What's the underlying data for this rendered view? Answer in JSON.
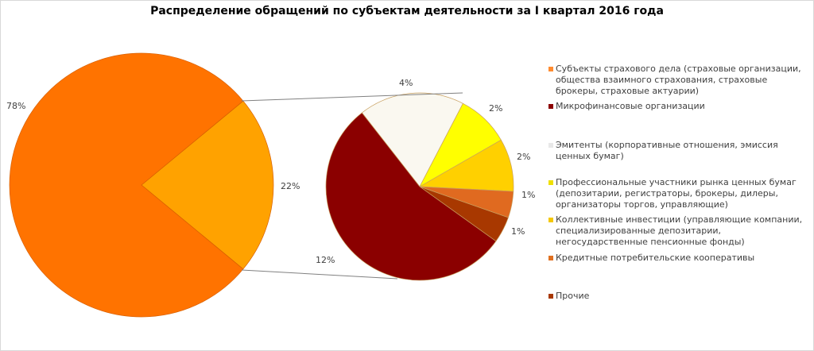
{
  "chart_data": {
    "type": "pie",
    "subtype": "pie-of-pie",
    "title": "Распределение обращений по субъектам деятельности за I квартал 2016 года",
    "primary": {
      "slices": [
        {
          "name": "Субъекты страхового дела",
          "value": 78,
          "label": "78%",
          "color": "#ff7300"
        },
        {
          "name": "Прочие (выделено)",
          "value": 22,
          "label": "22%",
          "color": "#ffa200"
        }
      ]
    },
    "secondary": {
      "slices": [
        {
          "name": "Микрофинансовые организации",
          "value": 12,
          "label": "12%",
          "color": "#8b0000"
        },
        {
          "name": "Эмитенты",
          "value": 4,
          "label": "4%",
          "color": "#faf8f0"
        },
        {
          "name": "Профессиональные участники рынка ценных бумаг",
          "value": 2,
          "label": "2%",
          "color": "#ffff00"
        },
        {
          "name": "Коллективные инвестиции",
          "value": 2,
          "label": "2%",
          "color": "#ffd000"
        },
        {
          "name": "Кредитные потребительские кооперативы",
          "value": 1,
          "label": "1%",
          "color": "#e06a20"
        },
        {
          "name": "Прочие",
          "value": 1,
          "label": "1%",
          "color": "#a83800"
        }
      ]
    },
    "legend_position": "right"
  },
  "legend": [
    {
      "label": "Субъекты страхового дела (страховые организации, общества взаимного страхования, страховые брокеры, страховые актуарии)",
      "color": "#ff8c30"
    },
    {
      "label": "Микрофинансовые организации",
      "color": "#8b0000"
    },
    {
      "label": "Эмитенты (корпоративные отношения, эмиссия ценных бумаг)",
      "color": "#e8e8e8"
    },
    {
      "label": "Профессиональные участники рынка ценных бумаг (депозитарии, регистраторы, брокеры, дилеры, организаторы торгов, управляющие)",
      "color": "#f0e000"
    },
    {
      "label": "Коллективные инвестиции (управляющие компании, специализированные депозитарии, негосударственные пенсионные фонды)",
      "color": "#f5c800"
    },
    {
      "label": "Кредитные потребительские кооперативы",
      "color": "#e07020"
    },
    {
      "label": "Прочие",
      "color": "#a83800"
    }
  ]
}
